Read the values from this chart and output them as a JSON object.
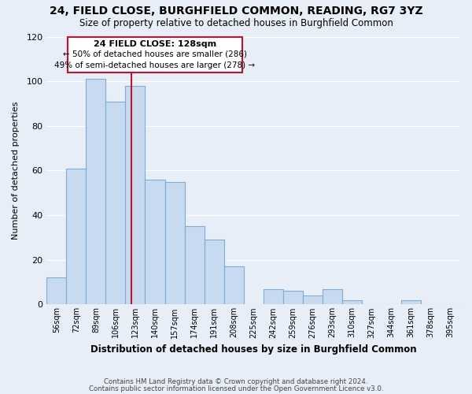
{
  "title": "24, FIELD CLOSE, BURGHFIELD COMMON, READING, RG7 3YZ",
  "subtitle": "Size of property relative to detached houses in Burghfield Common",
  "xlabel": "Distribution of detached houses by size in Burghfield Common",
  "ylabel": "Number of detached properties",
  "bin_labels": [
    "56sqm",
    "72sqm",
    "89sqm",
    "106sqm",
    "123sqm",
    "140sqm",
    "157sqm",
    "174sqm",
    "191sqm",
    "208sqm",
    "225sqm",
    "242sqm",
    "259sqm",
    "276sqm",
    "293sqm",
    "310sqm",
    "327sqm",
    "344sqm",
    "361sqm",
    "378sqm",
    "395sqm"
  ],
  "bar_heights": [
    12,
    61,
    101,
    91,
    98,
    56,
    55,
    35,
    29,
    17,
    0,
    7,
    6,
    4,
    7,
    2,
    0,
    0,
    2,
    0,
    0
  ],
  "bar_color": "#c8daf0",
  "bar_edgecolor": "#7badd4",
  "highlight_color": "#c8102e",
  "ylim": [
    0,
    120
  ],
  "yticks": [
    0,
    20,
    40,
    60,
    80,
    100,
    120
  ],
  "annotation_title": "24 FIELD CLOSE: 128sqm",
  "annotation_line1": "← 50% of detached houses are smaller (286)",
  "annotation_line2": "49% of semi-detached houses are larger (278) →",
  "footnote1": "Contains HM Land Registry data © Crown copyright and database right 2024.",
  "footnote2": "Contains public sector information licensed under the Open Government Licence v3.0.",
  "background_color": "#e8eef8",
  "plot_bg_color": "#e8eef8",
  "grid_color": "#ffffff",
  "vline_x": 3.79
}
